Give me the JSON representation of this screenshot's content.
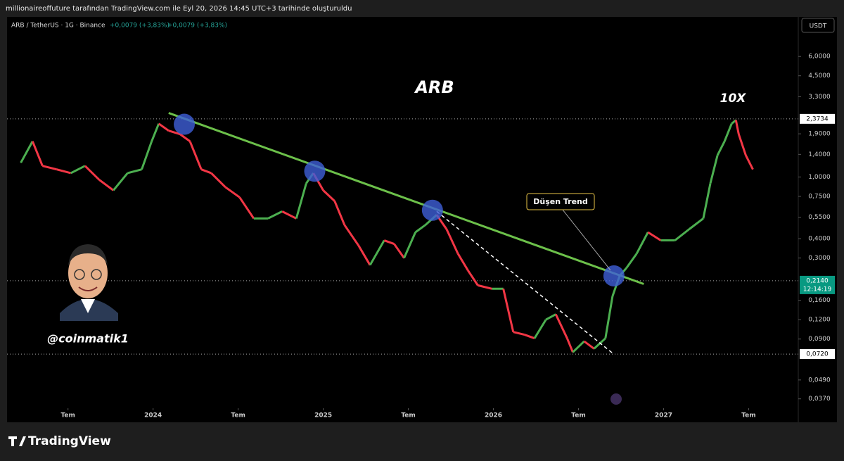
{
  "header": {
    "caption": "millionaireoffuture tarafından TradingView.com ile Eyl 20, 2026 14:45 UTC+3 tarihinde oluşturuldu",
    "symbol": "ARB / TetherUS · 1G · Binance",
    "change_1": "+0,0079 (+3,83%)",
    "change_2": "+0,0079 (+3,83%)",
    "currency": "USDT"
  },
  "footer": {
    "brand": "TradingView"
  },
  "chart_data": {
    "type": "line",
    "log": true,
    "title": "ARB",
    "annotations": {
      "target": "10X",
      "trend": "Düşen Trend",
      "author": "@coinmatik1"
    },
    "up_color": "#4caf50",
    "down_color": "#f23645",
    "x": [
      2.7,
      3.5,
      4.2,
      5.2,
      6.2,
      7.2,
      8.2,
      9.2,
      10.2,
      11.2,
      11.9,
      12.4,
      13.1,
      13.9,
      14.6,
      15.4,
      16.1,
      17.1,
      18.1,
      19.1,
      20.1,
      21.1,
      22.1,
      22.8,
      23.3,
      24.0,
      24.8,
      25.5,
      26.5,
      27.3,
      28.3,
      29.0,
      29.7,
      30.5,
      31.2,
      32.0,
      32.7,
      33.5,
      34.2,
      34.9,
      35.9,
      36.7,
      37.4,
      38.2,
      38.9,
      39.7,
      40.4,
      41.2,
      41.6,
      42.4,
      43.1,
      43.9,
      44.4,
      44.9,
      45.4,
      46.1,
      46.9,
      47.8,
      48.8,
      49.8,
      50.8,
      51.3,
      51.8,
      52.3,
      52.8,
      53.1,
      53.3,
      53.8,
      54.3
    ],
    "series": [
      {
        "name": "ARB / TetherUS",
        "values": [
          1.25,
          1.7,
          1.18,
          1.12,
          1.06,
          1.18,
          0.96,
          0.82,
          1.06,
          1.12,
          1.7,
          2.21,
          1.99,
          1.89,
          1.7,
          1.12,
          1.06,
          0.86,
          0.74,
          0.54,
          0.54,
          0.6,
          0.54,
          0.91,
          1.06,
          0.82,
          0.7,
          0.49,
          0.36,
          0.27,
          0.39,
          0.37,
          0.3,
          0.44,
          0.49,
          0.57,
          0.46,
          0.32,
          0.25,
          0.2,
          0.19,
          0.19,
          0.1,
          0.096,
          0.091,
          0.12,
          0.13,
          0.091,
          0.074,
          0.087,
          0.078,
          0.091,
          0.17,
          0.23,
          0.26,
          0.32,
          0.44,
          0.39,
          0.39,
          0.46,
          0.54,
          0.91,
          1.38,
          1.7,
          2.21,
          2.33,
          1.89,
          1.38,
          1.12
        ]
      }
    ],
    "trendline": {
      "color": "#6cc04a",
      "x": [
        13.1,
        46.6
      ],
      "y": [
        2.59,
        0.204
      ]
    },
    "support_line": {
      "color": "#ffffff",
      "x": [
        32.0,
        44.4
      ],
      "y": [
        0.6,
        0.073
      ]
    },
    "touches": {
      "color": "#3f5fd8",
      "x": [
        14.2,
        23.4,
        31.7,
        44.5
      ],
      "y": [
        2.19,
        1.09,
        0.61,
        0.23
      ]
    },
    "price_levels": [
      {
        "value": 2.3734,
        "label": "2,3734"
      },
      {
        "value": 0.214,
        "label": "0,2140",
        "timer": "12:14:19"
      },
      {
        "value": 0.072,
        "label": "0,0720"
      }
    ],
    "xlim": [
      1.7,
      57.5
    ],
    "xticks": [
      {
        "value": 6,
        "label": "Tem"
      },
      {
        "value": 12,
        "label": "2024"
      },
      {
        "value": 18,
        "label": "Tem"
      },
      {
        "value": 24,
        "label": "2025"
      },
      {
        "value": 30,
        "label": "Tem"
      },
      {
        "value": 36,
        "label": "2026"
      },
      {
        "value": 42,
        "label": "Tem"
      },
      {
        "value": 48,
        "label": "2027"
      },
      {
        "value": 54,
        "label": "Tem"
      }
    ],
    "ylim": [
      0.0322,
      10.8
    ],
    "yticks": [
      {
        "value": 6.0,
        "label": "6,0000"
      },
      {
        "value": 4.5,
        "label": "4,5000"
      },
      {
        "value": 3.3,
        "label": "3,3000"
      },
      {
        "value": 1.9,
        "label": "1,9000"
      },
      {
        "value": 1.4,
        "label": "1,4000"
      },
      {
        "value": 1.0,
        "label": "1,0000"
      },
      {
        "value": 0.75,
        "label": "0,7500"
      },
      {
        "value": 0.55,
        "label": "0,5500"
      },
      {
        "value": 0.4,
        "label": "0,4000"
      },
      {
        "value": 0.3,
        "label": "0,3000"
      },
      {
        "value": 0.16,
        "label": "0,1600"
      },
      {
        "value": 0.12,
        "label": "0,1200"
      },
      {
        "value": 0.09,
        "label": "0,0900"
      },
      {
        "value": 0.049,
        "label": "0,0490"
      },
      {
        "value": 0.037,
        "label": "0,0370"
      }
    ]
  }
}
